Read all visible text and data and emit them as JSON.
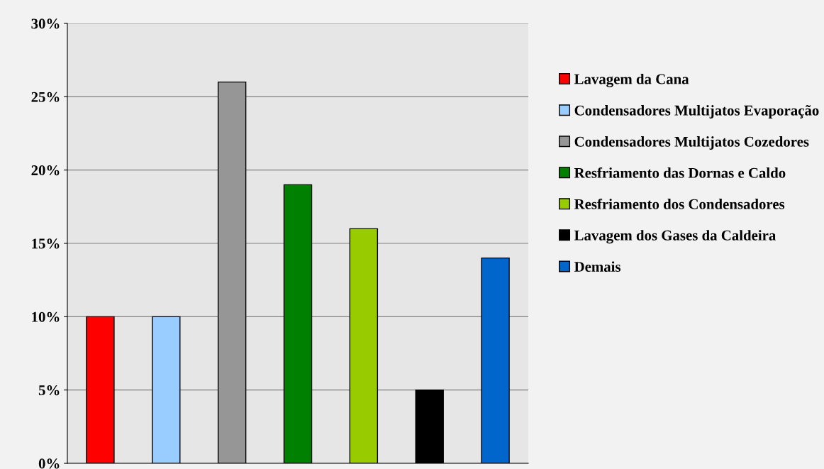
{
  "chart_data": {
    "type": "bar",
    "categories": [
      null,
      null,
      null,
      null,
      null,
      null,
      null
    ],
    "series": [
      {
        "name": "Lavagem da Cana",
        "color": "#ff0000",
        "values": [
          10,
          null,
          null,
          null,
          null,
          null,
          null
        ]
      },
      {
        "name": "Condensadores Multijatos Evaporação",
        "color": "#99ccff",
        "values": [
          null,
          10,
          null,
          null,
          null,
          null,
          null
        ]
      },
      {
        "name": "Condensadores Multijatos Cozedores",
        "color": "#969696",
        "values": [
          null,
          null,
          26,
          null,
          null,
          null,
          null
        ]
      },
      {
        "name": "Resfriamento das Dornas e Caldo",
        "color": "#008000",
        "values": [
          null,
          null,
          null,
          19,
          null,
          null,
          null
        ]
      },
      {
        "name": "Resfriamento dos Condensadores",
        "color": "#99cc00",
        "values": [
          null,
          null,
          null,
          null,
          16,
          null,
          null
        ]
      },
      {
        "name": "Lavagem dos Gases da Caldeira",
        "color": "#000000",
        "values": [
          null,
          null,
          null,
          null,
          null,
          5,
          null
        ]
      },
      {
        "name": "Demais",
        "color": "#0066cc",
        "values": [
          null,
          null,
          null,
          null,
          null,
          null,
          14
        ]
      }
    ],
    "ylim": [
      0,
      30
    ],
    "yticks": [
      {
        "value": 0,
        "label": "0%"
      },
      {
        "value": 5,
        "label": "5%"
      },
      {
        "value": 10,
        "label": "10%"
      },
      {
        "value": 15,
        "label": "15%"
      },
      {
        "value": 20,
        "label": "20%"
      },
      {
        "value": 25,
        "label": "25%"
      },
      {
        "value": 30,
        "label": "30%"
      }
    ],
    "grid": "y",
    "legend": "right"
  }
}
